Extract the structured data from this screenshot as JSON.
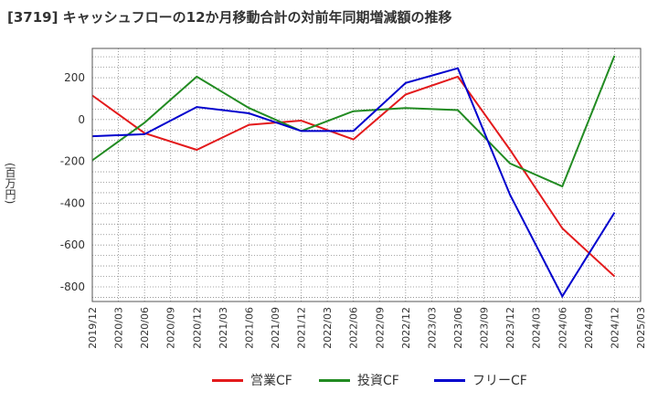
{
  "title": "[3719]  キャッシュフローの12か月移動合計の対前年同期増減額の推移",
  "ylabel": "(百万円)",
  "chart_data": {
    "type": "line",
    "title": "[3719]  キャッシュフローの12か月移動合計の対前年同期増減額の推移",
    "ylabel": "(百万円)",
    "xlabel": "",
    "ylim": [
      -870,
      340
    ],
    "yticks": [
      200,
      0,
      -200,
      -400,
      -600,
      -800
    ],
    "ytick_labels": [
      "200",
      "0",
      "-200",
      "-400",
      "-600",
      "-800"
    ],
    "x_ticks": [
      "2019/12",
      "2020/03",
      "2020/06",
      "2020/09",
      "2020/12",
      "2021/03",
      "2021/06",
      "2021/09",
      "2021/12",
      "2022/03",
      "2022/06",
      "2022/09",
      "2022/12",
      "2023/03",
      "2023/06",
      "2023/09",
      "2023/12",
      "2024/03",
      "2024/06",
      "2024/09",
      "2024/12",
      "2025/03"
    ],
    "grid": true,
    "legend_position": "bottom",
    "series": [
      {
        "name": "営業CF",
        "color": "#e31a1c",
        "x": [
          "2019/12",
          "2020/06",
          "2020/12",
          "2021/06",
          "2021/12",
          "2022/06",
          "2022/12",
          "2023/06",
          "2023/12",
          "2024/06",
          "2024/12"
        ],
        "values": [
          115,
          -65,
          -145,
          -25,
          -5,
          -95,
          120,
          205,
          -145,
          -520,
          -750
        ]
      },
      {
        "name": "投資CF",
        "color": "#228b22",
        "x": [
          "2019/12",
          "2020/06",
          "2020/12",
          "2021/06",
          "2021/12",
          "2022/06",
          "2022/12",
          "2023/06",
          "2023/12",
          "2024/06",
          "2024/12"
        ],
        "values": [
          -195,
          -15,
          205,
          55,
          -55,
          40,
          55,
          45,
          -210,
          -320,
          305
        ]
      },
      {
        "name": "フリーCF",
        "color": "#0000cd",
        "x": [
          "2019/12",
          "2020/06",
          "2020/12",
          "2021/06",
          "2021/12",
          "2022/06",
          "2022/12",
          "2023/06",
          "2023/12",
          "2024/06",
          "2024/12"
        ],
        "values": [
          -80,
          -70,
          60,
          30,
          -55,
          -55,
          175,
          245,
          -360,
          -845,
          -445
        ]
      }
    ]
  }
}
